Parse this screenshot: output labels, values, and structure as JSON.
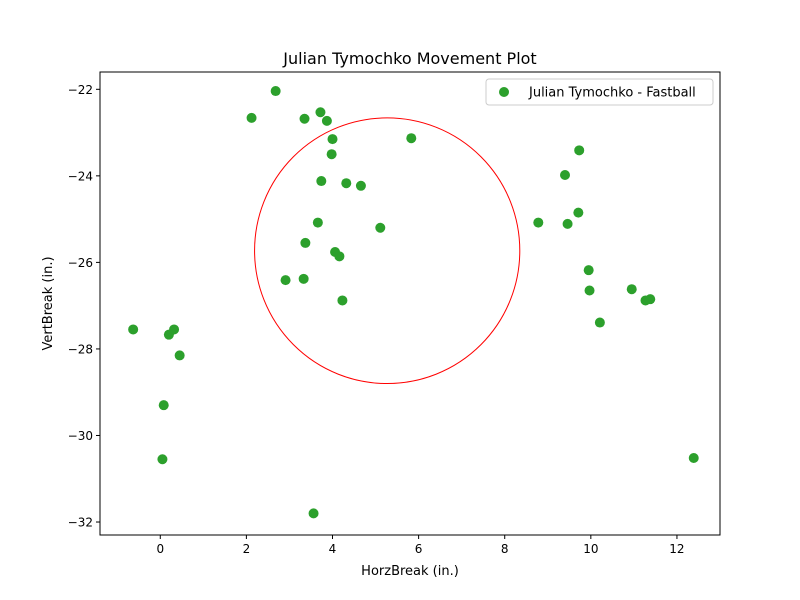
{
  "chart_data": {
    "type": "scatter",
    "title": "Julian Tymochko Movement Plot",
    "xlabel": "HorzBreak (in.)",
    "ylabel": "VertBreak (in.)",
    "xlim": [
      -1.4,
      13.0
    ],
    "ylim": [
      -32.3,
      -21.6
    ],
    "xticks": [
      0,
      2,
      4,
      6,
      8,
      10,
      12
    ],
    "xtick_labels": [
      "0",
      "2",
      "4",
      "6",
      "8",
      "10",
      "12"
    ],
    "yticks": [
      -22,
      -24,
      -26,
      -28,
      -30,
      -32
    ],
    "ytick_labels": [
      "−22",
      "−24",
      "−26",
      "−28",
      "−30",
      "−32"
    ],
    "grid": false,
    "legend_position": "top-right",
    "series": [
      {
        "name": "Julian Tymochko - Fastball",
        "color": "#2ca02c",
        "points": [
          {
            "x": -0.63,
            "y": -27.55
          },
          {
            "x": 0.05,
            "y": -30.55
          },
          {
            "x": 0.08,
            "y": -29.3
          },
          {
            "x": 0.2,
            "y": -27.67
          },
          {
            "x": 0.32,
            "y": -27.55
          },
          {
            "x": 0.45,
            "y": -28.15
          },
          {
            "x": 2.12,
            "y": -22.66
          },
          {
            "x": 2.68,
            "y": -22.04
          },
          {
            "x": 2.91,
            "y": -26.41
          },
          {
            "x": 3.33,
            "y": -26.38
          },
          {
            "x": 3.35,
            "y": -22.68
          },
          {
            "x": 3.37,
            "y": -25.55
          },
          {
            "x": 3.56,
            "y": -31.8
          },
          {
            "x": 3.66,
            "y": -25.08
          },
          {
            "x": 3.72,
            "y": -22.53
          },
          {
            "x": 3.74,
            "y": -24.12
          },
          {
            "x": 3.87,
            "y": -22.73
          },
          {
            "x": 3.98,
            "y": -23.5
          },
          {
            "x": 4.0,
            "y": -23.15
          },
          {
            "x": 4.06,
            "y": -25.76
          },
          {
            "x": 4.16,
            "y": -25.86
          },
          {
            "x": 4.23,
            "y": -26.88
          },
          {
            "x": 4.32,
            "y": -24.17
          },
          {
            "x": 4.66,
            "y": -24.23
          },
          {
            "x": 5.11,
            "y": -25.2
          },
          {
            "x": 5.83,
            "y": -23.13
          },
          {
            "x": 8.78,
            "y": -25.08
          },
          {
            "x": 9.4,
            "y": -23.98
          },
          {
            "x": 9.46,
            "y": -25.11
          },
          {
            "x": 9.71,
            "y": -24.85
          },
          {
            "x": 9.73,
            "y": -23.41
          },
          {
            "x": 9.95,
            "y": -26.18
          },
          {
            "x": 9.97,
            "y": -26.65
          },
          {
            "x": 10.21,
            "y": -27.39
          },
          {
            "x": 10.95,
            "y": -26.62
          },
          {
            "x": 11.27,
            "y": -26.88
          },
          {
            "x": 11.38,
            "y": -26.85
          },
          {
            "x": 12.39,
            "y": -30.52
          }
        ]
      }
    ],
    "annotations": [
      {
        "type": "circle",
        "color": "#ff0000",
        "cx": 5.27,
        "cy": -25.73,
        "rx": 3.08,
        "ry": 3.07
      }
    ]
  }
}
